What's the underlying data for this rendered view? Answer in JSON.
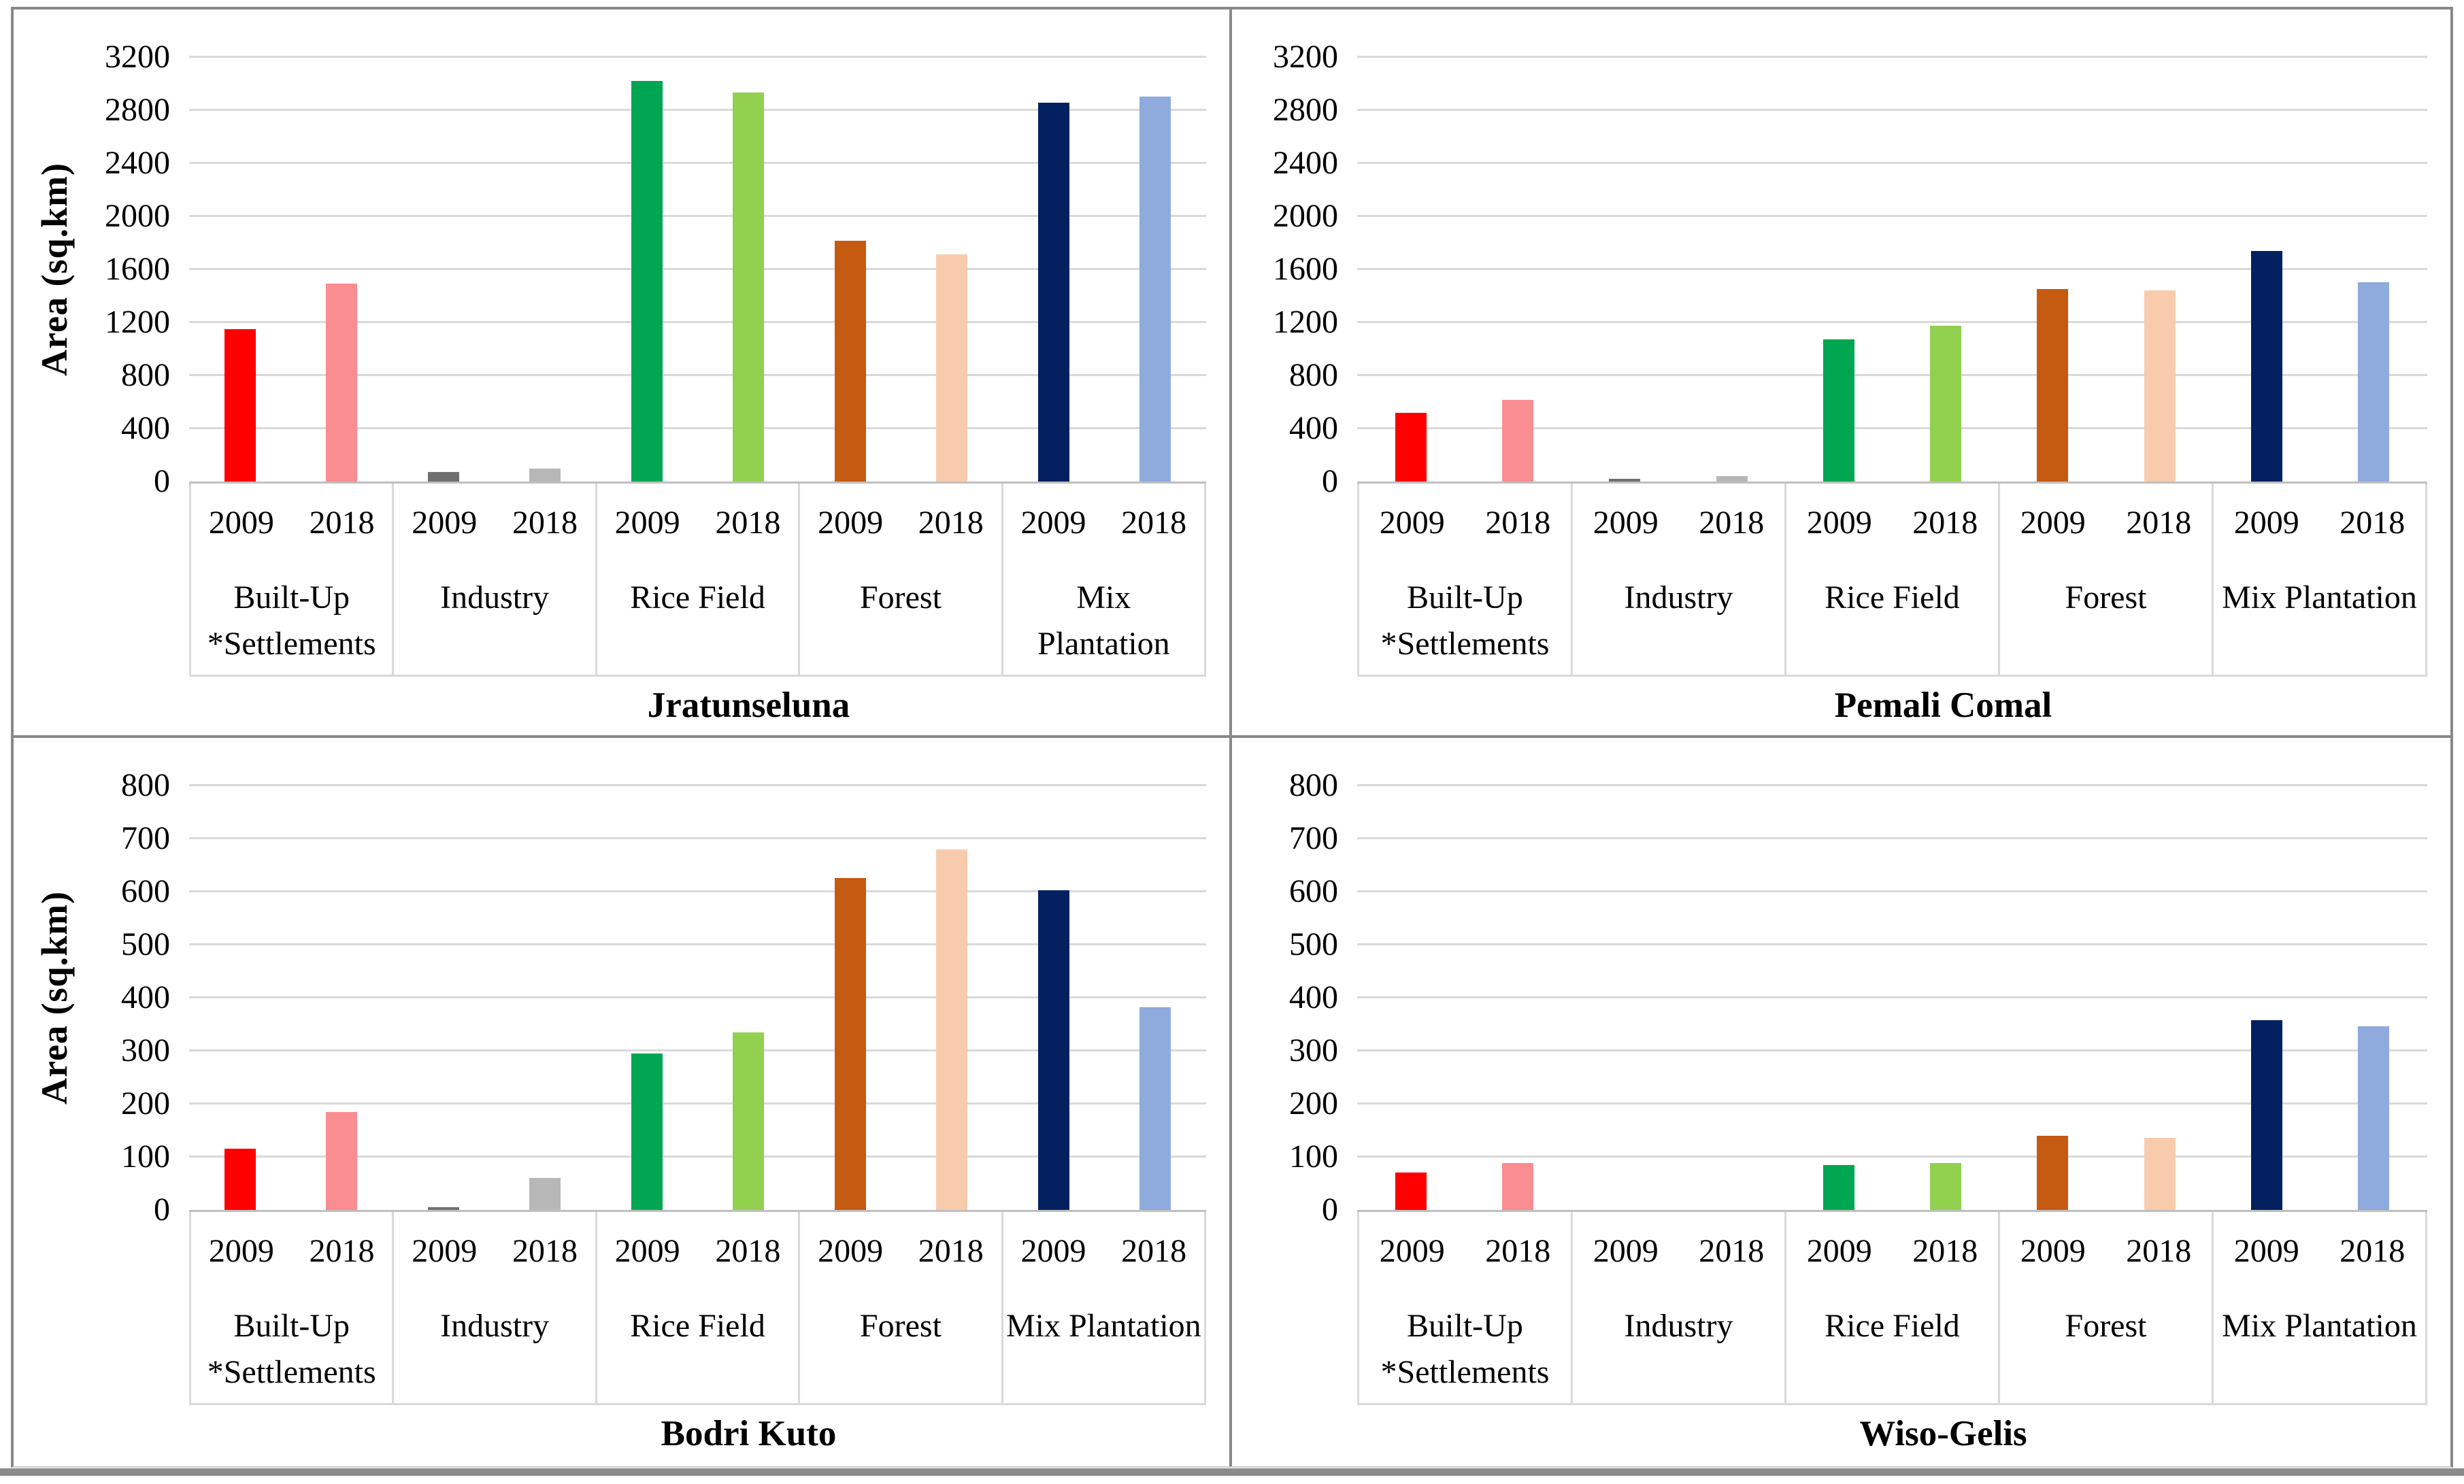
{
  "figure": {
    "frame_border_color": "#898989",
    "bottom_bar_color": "#8b8b8b",
    "gridline_color": "#d9d9d9",
    "axis_line_color": "#bfbfbf",
    "text_color": "#000000",
    "background_color": "#ffffff"
  },
  "series_colors": {
    "2009": [
      "#fe0000",
      "#6f6f6f",
      "#00a651",
      "#c55a11",
      "#032160"
    ],
    "2018": [
      "#f98d91",
      "#b7b7b7",
      "#92d050",
      "#f8cbad",
      "#8faadc"
    ]
  },
  "chart_data": [
    {
      "type": "bar",
      "title": "Jratunseluna",
      "ylabel": "Area (sq.km)",
      "show_ylabel": true,
      "ylim": [
        0,
        3200
      ],
      "ytick_step": 400,
      "yticks": [
        "0",
        "400",
        "800",
        "1200",
        "1600",
        "2000",
        "2400",
        "2800",
        "3200"
      ],
      "grid": true,
      "legend": "none",
      "categories": [
        "Built-Up *Settlements",
        "Industry",
        "Rice Field",
        "Forest",
        "Mix Plantation"
      ],
      "category_lines": [
        [
          "Built-Up",
          "*Settlements"
        ],
        [
          "Industry"
        ],
        [
          "Rice Field"
        ],
        [
          "Forest"
        ],
        [
          "Mix",
          "Plantation"
        ]
      ],
      "series": [
        {
          "name": "2009",
          "values": [
            1150,
            70,
            3020,
            1815,
            2855
          ]
        },
        {
          "name": "2018",
          "values": [
            1490,
            95,
            2935,
            1715,
            2900
          ]
        }
      ]
    },
    {
      "type": "bar",
      "title": "Pemali Comal",
      "ylabel": "Area (sq.km)",
      "show_ylabel": false,
      "ylim": [
        0,
        3200
      ],
      "ytick_step": 400,
      "yticks": [
        "0",
        "400",
        "800",
        "1200",
        "1600",
        "2000",
        "2400",
        "2800",
        "3200"
      ],
      "grid": true,
      "legend": "none",
      "categories": [
        "Built-Up *Settlements",
        "Industry",
        "Rice Field",
        "Forest",
        "Mix Plantation"
      ],
      "category_lines": [
        [
          "Built-Up",
          "*Settlements"
        ],
        [
          "Industry"
        ],
        [
          "Rice Field"
        ],
        [
          "Forest"
        ],
        [
          "Mix Plantation"
        ]
      ],
      "series": [
        {
          "name": "2009",
          "values": [
            520,
            20,
            1070,
            1450,
            1740
          ]
        },
        {
          "name": "2018",
          "values": [
            615,
            40,
            1175,
            1440,
            1500
          ]
        }
      ]
    },
    {
      "type": "bar",
      "title": "Bodri Kuto",
      "ylabel": "Area (sq.km)",
      "show_ylabel": true,
      "ylim": [
        0,
        800
      ],
      "ytick_step": 100,
      "yticks": [
        "0",
        "100",
        "200",
        "300",
        "400",
        "500",
        "600",
        "700",
        "800"
      ],
      "grid": true,
      "legend": "none",
      "categories": [
        "Built-Up *Settlements",
        "Industry",
        "Rice Field",
        "Forest",
        "Mix Plantation"
      ],
      "category_lines": [
        [
          "Built-Up",
          "*Settlements"
        ],
        [
          "Industry"
        ],
        [
          "Rice Field"
        ],
        [
          "Forest"
        ],
        [
          "Mix Plantation"
        ]
      ],
      "series": [
        {
          "name": "2009",
          "values": [
            115,
            5,
            295,
            625,
            602
          ]
        },
        {
          "name": "2018",
          "values": [
            185,
            60,
            335,
            680,
            382
          ]
        }
      ]
    },
    {
      "type": "bar",
      "title": "Wiso-Gelis",
      "ylabel": "Area (sq.km)",
      "show_ylabel": false,
      "ylim": [
        0,
        800
      ],
      "ytick_step": 100,
      "yticks": [
        "0",
        "100",
        "200",
        "300",
        "400",
        "500",
        "600",
        "700",
        "800"
      ],
      "grid": true,
      "legend": "none",
      "categories": [
        "Built-Up *Settlements",
        "Industry",
        "Rice Field",
        "Forest",
        "Mix Plantation"
      ],
      "category_lines": [
        [
          "Built-Up",
          "*Settlements"
        ],
        [
          "Industry"
        ],
        [
          "Rice Field"
        ],
        [
          "Forest"
        ],
        [
          "Mix Plantation"
        ]
      ],
      "series": [
        {
          "name": "2009",
          "values": [
            70,
            0,
            85,
            140,
            358
          ]
        },
        {
          "name": "2018",
          "values": [
            88,
            0,
            88,
            136,
            346
          ]
        }
      ]
    }
  ]
}
